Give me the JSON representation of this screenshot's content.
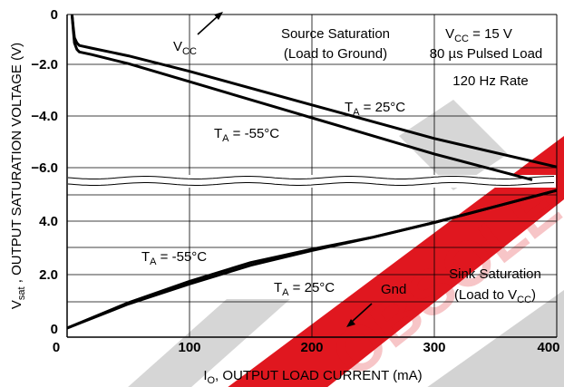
{
  "chart_data": {
    "type": "line",
    "watermark_text": "OBSOLETE DEVICE",
    "xlabel": {
      "main": "I",
      "sub": "O",
      "rest": ", OUTPUT LOAD CURRENT (mA)"
    },
    "ylabel": {
      "main": "V",
      "sub": "sat",
      "rest": " , OUTPUT SATURATION VOLTAGE (V)"
    },
    "xlim": [
      0,
      400
    ],
    "x_ticks": [
      "0",
      "100",
      "200",
      "300",
      "400"
    ],
    "y_ticks_upper": [
      "0",
      "−2.0",
      "−4.0",
      "−6.0"
    ],
    "y_ticks_lower": [
      "4.0",
      "2.0",
      "0"
    ],
    "upper_panel": {
      "title": "Source Saturation",
      "subtitle": "(Load to Ground)",
      "reference": "VCC",
      "ylim": [
        -6.7,
        0
      ],
      "series": [
        {
          "name": "TA = 25°C",
          "x": [
            4,
            5,
            6,
            8,
            10,
            20,
            50,
            100,
            200,
            300,
            400
          ],
          "y": [
            0,
            -0.5,
            -0.9,
            -1.1,
            -1.2,
            -1.3,
            -1.6,
            -2.2,
            -3.5,
            -4.8,
            -5.9
          ]
        },
        {
          "name": "TA = -55°C",
          "x": [
            4,
            5,
            6,
            8,
            10,
            20,
            50,
            100,
            200,
            300,
            380
          ],
          "y": [
            0,
            -0.6,
            -1.1,
            -1.35,
            -1.45,
            -1.55,
            -1.9,
            -2.6,
            -4.0,
            -5.4,
            -6.4
          ]
        }
      ]
    },
    "lower_panel": {
      "title": "Sink Saturation",
      "subtitle_main": "(Load to V",
      "subtitle_sub": "CC",
      "subtitle_end": ")",
      "reference": "Gnd",
      "ylim": [
        0,
        5.2
      ],
      "series": [
        {
          "name": "TA = -55°C",
          "x": [
            0,
            50,
            100,
            150,
            200,
            250,
            300,
            350,
            400
          ],
          "y": [
            0,
            0.95,
            1.75,
            2.45,
            2.95,
            3.4,
            3.95,
            4.55,
            5.15
          ]
        },
        {
          "name": "TA = 25°C",
          "x": [
            0,
            50,
            100,
            150,
            200,
            250,
            300,
            350,
            400
          ],
          "y": [
            0,
            0.9,
            1.65,
            2.35,
            2.9,
            3.4,
            3.95,
            4.55,
            5.15
          ]
        }
      ]
    },
    "conditions": {
      "vcc_main": "V",
      "vcc_sub": "CC",
      "vcc_value": " = 15 V",
      "pulse": "80 µs Pulsed Load",
      "rate": "120 Hz Rate"
    },
    "annotations": {
      "ta_main": "T",
      "ta_sub": "A",
      "ta25": " = 25°C",
      "ta55": " = -55°C",
      "vcc_main": "V",
      "vcc_sub": "CC",
      "gnd": "Gnd"
    },
    "colors": {
      "line": "#000000",
      "watermark": "#e0171f",
      "watermark_grey": "#cfcfcf"
    }
  }
}
